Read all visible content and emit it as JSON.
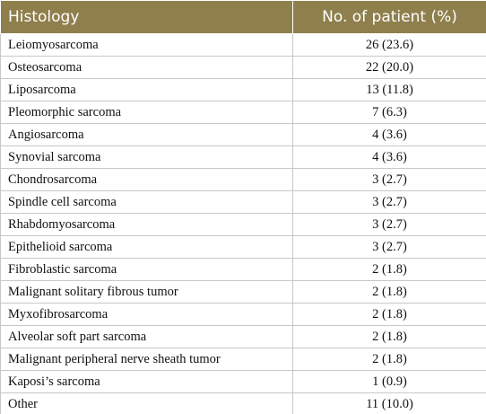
{
  "table": {
    "header": [
      "Histology",
      "No. of patient (%)"
    ],
    "rows": [
      [
        "Leiomyosarcoma",
        "26 (23.6)"
      ],
      [
        "Osteosarcoma",
        "22 (20.0)"
      ],
      [
        "Liposarcoma",
        "13 (11.8)"
      ],
      [
        "Pleomorphic sarcoma",
        "7 (6.3)"
      ],
      [
        "Angiosarcoma",
        "4 (3.6)"
      ],
      [
        "Synovial sarcoma",
        "4 (3.6)"
      ],
      [
        "Chondrosarcoma",
        "3 (2.7)"
      ],
      [
        "Spindle cell sarcoma",
        "3 (2.7)"
      ],
      [
        "Rhabdomyosarcoma",
        "3 (2.7)"
      ],
      [
        "Epithelioid sarcoma",
        "3 (2.7)"
      ],
      [
        "Fibroblastic sarcoma",
        "2 (1.8)"
      ],
      [
        "Malignant solitary fibrous tumor",
        "2 (1.8)"
      ],
      [
        "Myxofibrosarcoma",
        "2 (1.8)"
      ],
      [
        "Alveolar soft part sarcoma",
        "2 (1.8)"
      ],
      [
        "Malignant peripheral nerve sheath tumor",
        "2 (1.8)"
      ],
      [
        "Kaposi’s sarcoma",
        "1 (0.9)"
      ],
      [
        "Other",
        "11 (10.0)"
      ]
    ]
  }
}
